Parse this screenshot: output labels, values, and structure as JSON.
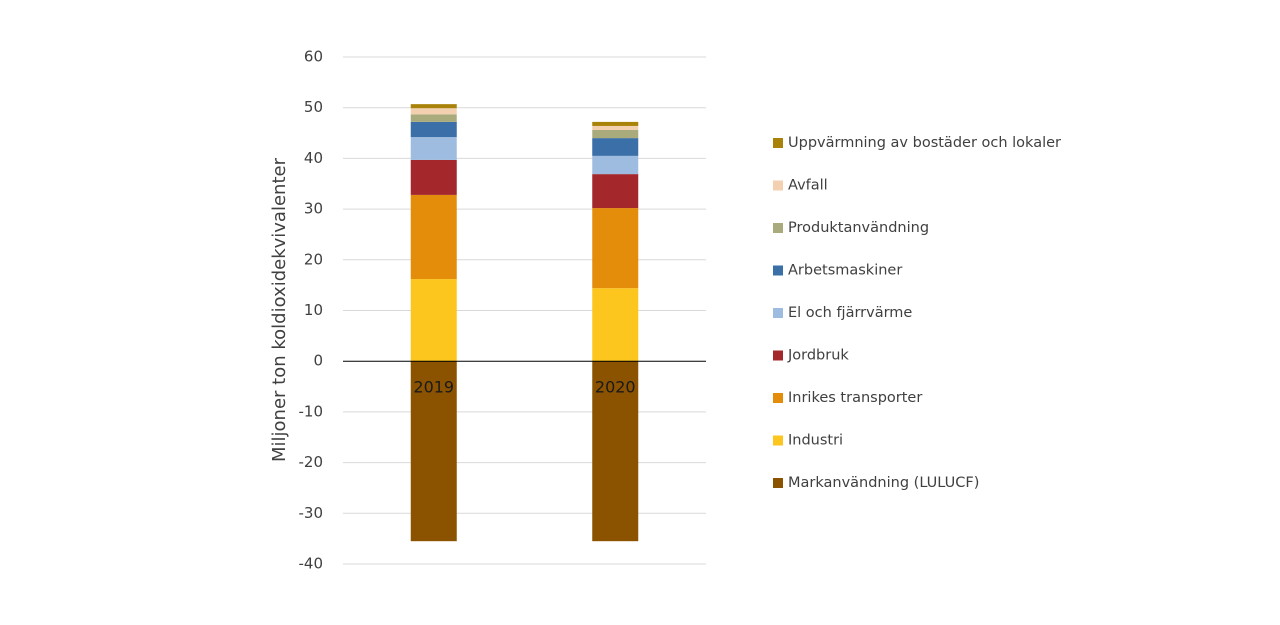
{
  "chart_data": {
    "type": "stacked_bar",
    "y_axis_label": "Miljoner ton koldioxidekvivalenter",
    "categories": [
      "2019",
      "2020"
    ],
    "ylim": [
      -40,
      60
    ],
    "yticks": [
      -40,
      -30,
      -20,
      -10,
      0,
      10,
      20,
      30,
      40,
      50,
      60
    ],
    "grid": true,
    "legend": "right",
    "series": [
      {
        "name": "Markanvändning (LULUCF)",
        "color": "#8b5200",
        "values": [
          -35.5,
          -35.5
        ]
      },
      {
        "name": "Industri",
        "color": "#fdc61f",
        "values": [
          16.2,
          14.4
        ]
      },
      {
        "name": "Inrikes transporter",
        "color": "#e48d0a",
        "values": [
          16.6,
          15.8
        ]
      },
      {
        "name": "Jordbruk",
        "color": "#a3272b",
        "values": [
          6.9,
          6.7
        ]
      },
      {
        "name": "El och fjärrvärme",
        "color": "#9dbce0",
        "values": [
          4.5,
          3.6
        ]
      },
      {
        "name": "Arbetsmaskiner",
        "color": "#3a6fa8",
        "values": [
          3.0,
          3.5
        ]
      },
      {
        "name": "Produktanvändning",
        "color": "#aaab7c",
        "values": [
          1.5,
          1.6
        ]
      },
      {
        "name": "Avfall",
        "color": "#f3d0b0",
        "values": [
          1.2,
          0.8
        ]
      },
      {
        "name": "Uppvärmning av bostäder och lokaler",
        "color": "#a98209",
        "values": [
          0.8,
          0.8
        ]
      }
    ]
  }
}
